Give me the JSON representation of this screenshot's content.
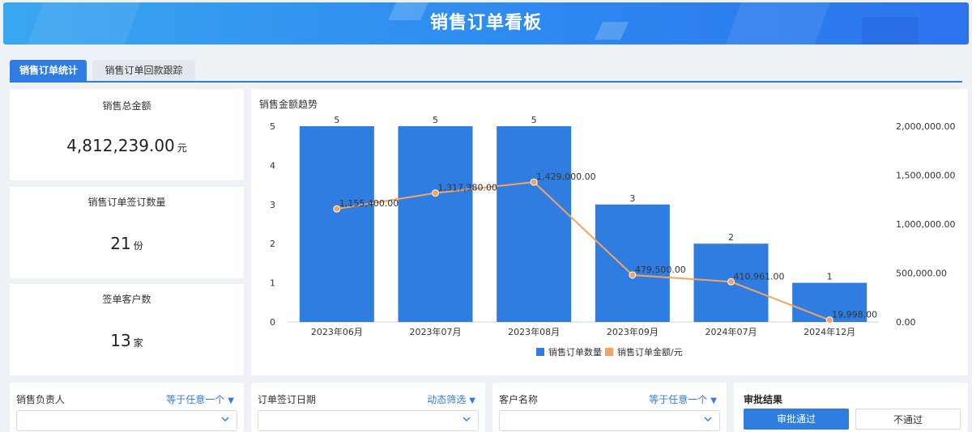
{
  "header": {
    "title": "销售订单看板"
  },
  "tabs": [
    {
      "label": "销售订单统计",
      "active": true
    },
    {
      "label": "销售订单回款跟踪",
      "active": false
    }
  ],
  "kpis": [
    {
      "title": "销售总金额",
      "value": "4,812,239.00",
      "unit": "元"
    },
    {
      "title": "销售订单签订数量",
      "value": "21",
      "unit": "份"
    },
    {
      "title": "签单客户数",
      "value": "13",
      "unit": "家"
    }
  ],
  "chart": {
    "title": "销售金额趋势"
  },
  "chart_data": {
    "type": "bar+line",
    "categories": [
      "2023年06月",
      "2023年07月",
      "2023年08月",
      "2023年09月",
      "2024年07月",
      "2024年12月"
    ],
    "series": [
      {
        "name": "销售订单数量",
        "type": "bar",
        "axis": "left",
        "color": "#2f7de1",
        "values": [
          5,
          5,
          5,
          3,
          2,
          1
        ],
        "labels": [
          "5",
          "5",
          "5",
          "3",
          "2",
          "1"
        ]
      },
      {
        "name": "销售订单金额/元",
        "type": "line",
        "axis": "right",
        "color": "#f4a460",
        "values": [
          1155400,
          1317380,
          1429000,
          479500,
          410961,
          19998
        ],
        "labels": [
          "1,155,400.00",
          "1,317,380.00",
          "1,429,000.00",
          "479,500.00",
          "410,961.00",
          "19,998.00"
        ]
      }
    ],
    "y_left": {
      "ylim": [
        0,
        5
      ],
      "ticks": [
        "0",
        "1",
        "2",
        "3",
        "4",
        "5"
      ]
    },
    "y_right": {
      "ylim": [
        0,
        2000000
      ],
      "ticks": [
        "0.00",
        "500,000.00",
        "1,000,000.00",
        "1,500,000.00",
        "2,000,000.00"
      ]
    },
    "legend_position": "bottom-center",
    "grid": false
  },
  "filters": [
    {
      "label": "销售负责人",
      "mode": "等于任意一个"
    },
    {
      "label": "订单签订日期",
      "mode": "动态筛选"
    },
    {
      "label": "客户名称",
      "mode": "等于任意一个"
    }
  ],
  "approval": {
    "label": "审批结果",
    "options": [
      "审批通过",
      "不通过"
    ]
  },
  "colors": {
    "accent": "#2f7de1",
    "line": "#f4a460"
  }
}
